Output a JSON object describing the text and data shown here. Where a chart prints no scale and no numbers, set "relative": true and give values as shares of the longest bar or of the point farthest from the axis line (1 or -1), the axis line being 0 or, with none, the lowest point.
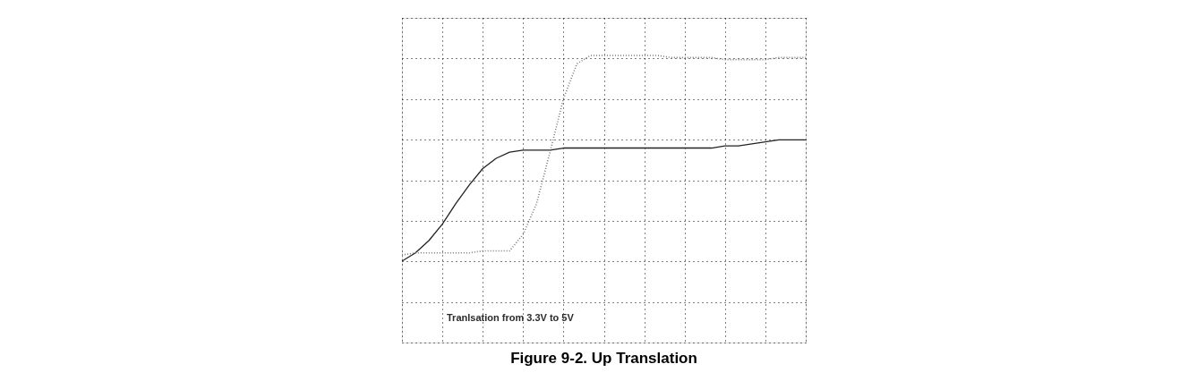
{
  "chart_data": {
    "type": "line",
    "title": "Figure 9-2. Up Translation",
    "relative": true,
    "grid": true,
    "categories": [
      null,
      null,
      null,
      null,
      null,
      null,
      null,
      null,
      null,
      null,
      null,
      null,
      null,
      null,
      null,
      null,
      null,
      null,
      null,
      null,
      null,
      null,
      null,
      null,
      null,
      null,
      null,
      null,
      null,
      null,
      null
    ],
    "annotations": [
      "Tranlsation from 3.3V to 5V"
    ],
    "series": [
      {
        "color": "#222222",
        "line_style": "solid",
        "values": [
          0,
          0.04,
          0.1,
          0.18,
          0.28,
          0.37,
          0.45,
          0.5,
          0.53,
          0.54,
          0.54,
          0.54,
          0.55,
          0.55,
          0.55,
          0.55,
          0.55,
          0.55,
          0.55,
          0.55,
          0.55,
          0.55,
          0.55,
          0.55,
          0.56,
          0.56,
          0.57,
          0.58,
          0.59,
          0.59,
          0.59
        ]
      },
      {
        "color": "#777777",
        "line_style": "dotted",
        "values": [
          0.03,
          0.04,
          0.04,
          0.04,
          0.04,
          0.04,
          0.05,
          0.05,
          0.05,
          0.13,
          0.28,
          0.53,
          0.79,
          0.96,
          1.0,
          1.0,
          1.0,
          1.0,
          1.0,
          1.0,
          0.99,
          0.99,
          0.99,
          0.99,
          0.98,
          0.98,
          0.98,
          0.98,
          0.99,
          0.99,
          0.99
        ]
      }
    ]
  }
}
